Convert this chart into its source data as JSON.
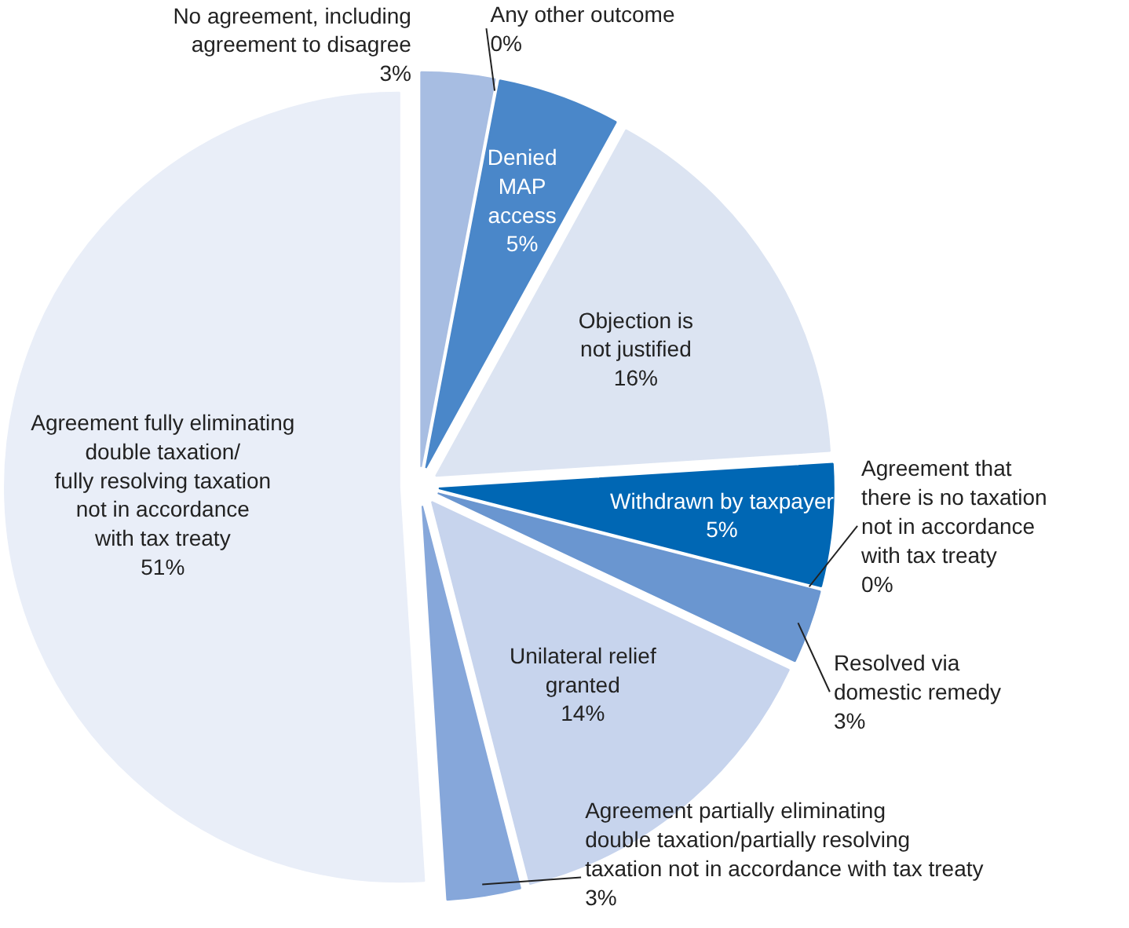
{
  "chart_data": {
    "type": "pie",
    "categories": [
      "No agreement, including\nagreement to disagree",
      "Any other outcome",
      "Denied\nMAP\naccess",
      "Objection is\nnot justified",
      "Withdrawn by taxpayer",
      "Agreement that\nthere is no taxation\nnot in accordance\nwith tax treaty",
      "Resolved via\ndomestic remedy",
      "Unilateral relief\ngranted",
      "Agreement partially eliminating\ndouble taxation/partially resolving\ntaxation not in accordance with tax treaty",
      "Agreement fully eliminating\ndouble taxation/\nfully resolving taxation\nnot in accordance\nwith tax treaty"
    ],
    "values": [
      3,
      0,
      5,
      16,
      5,
      0,
      3,
      14,
      3,
      51
    ],
    "value_labels": [
      "3%",
      "0%",
      "5%",
      "16%",
      "5%",
      "0%",
      "3%",
      "14%",
      "3%",
      "51%"
    ],
    "colors": [
      "#a7bde2",
      "#2f6db5",
      "#4a87c9",
      "#dce4f2",
      "#0067b4",
      "#1f5fa8",
      "#6a96d0",
      "#c7d4ed",
      "#86a7da",
      "#e9eef8"
    ]
  }
}
